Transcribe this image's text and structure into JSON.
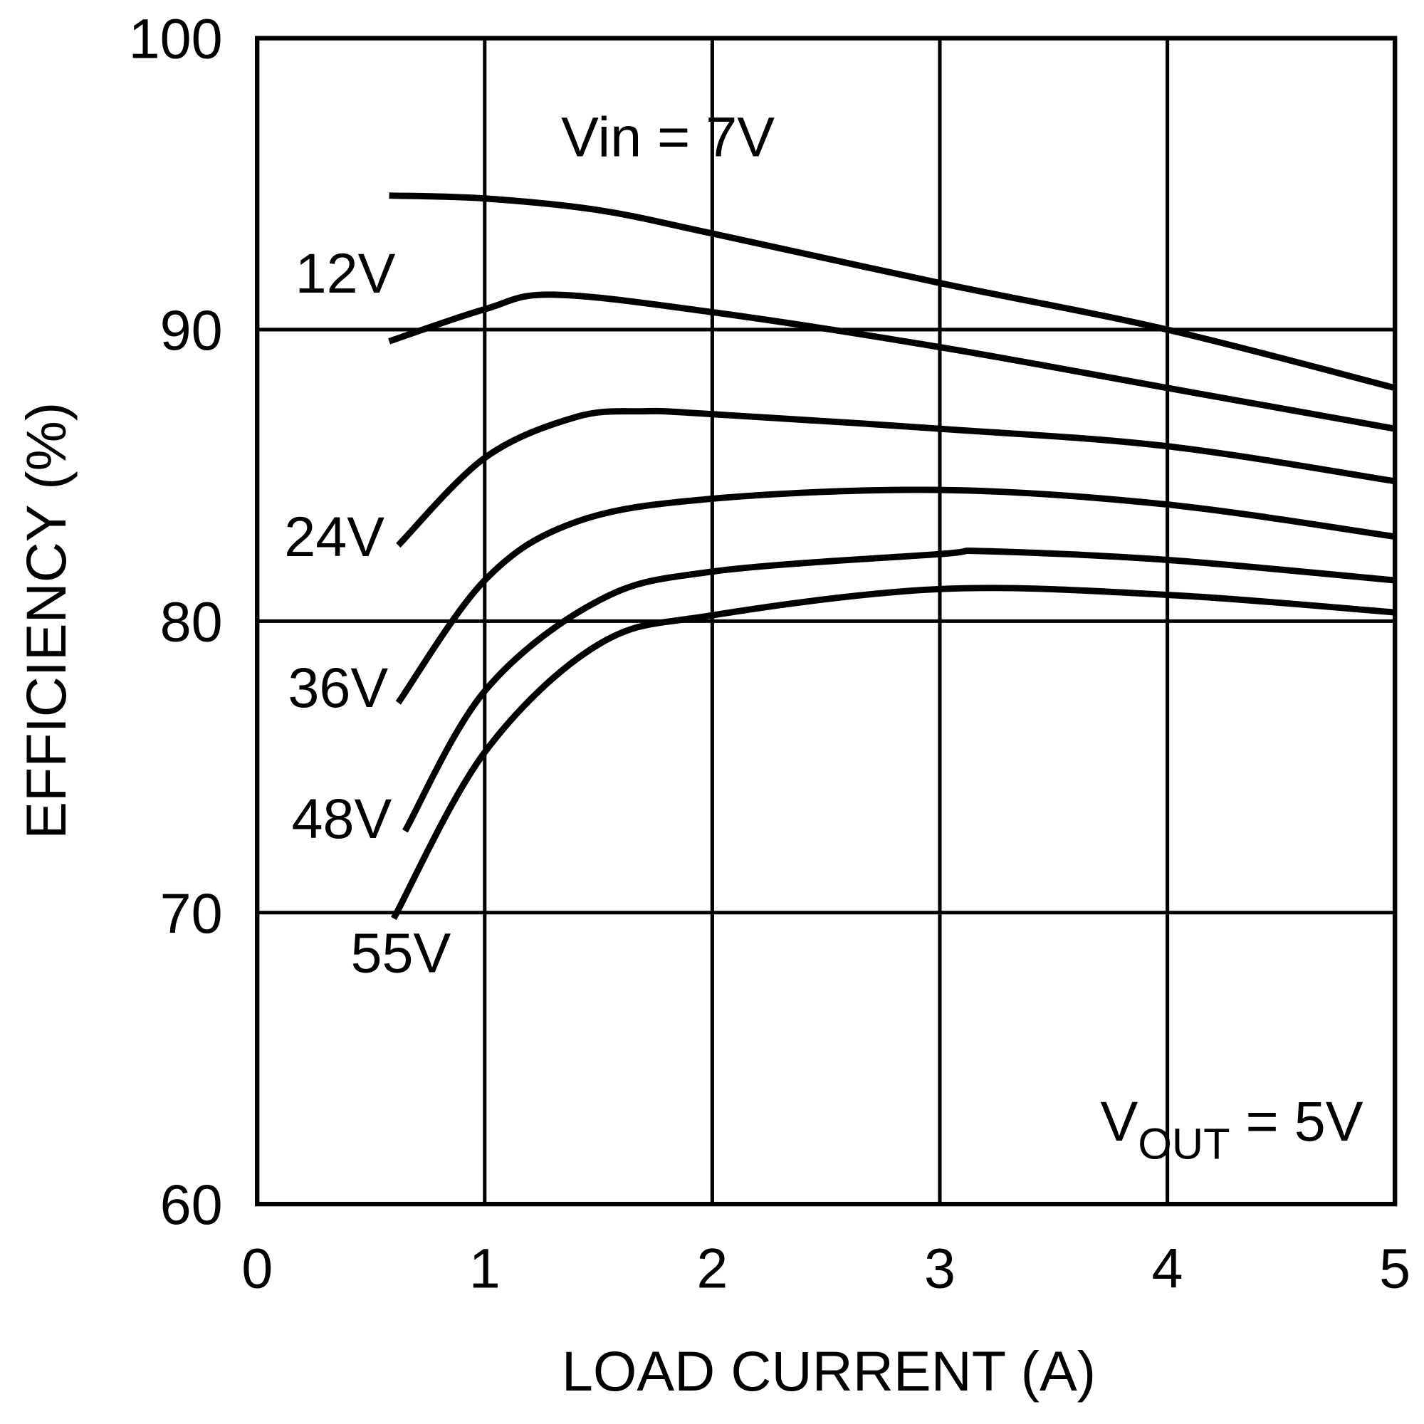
{
  "chart_data": {
    "type": "line",
    "title": "",
    "xlabel": "LOAD CURRENT (A)",
    "ylabel": "EFFICIENCY (%)",
    "xlim": [
      0,
      5
    ],
    "ylim": [
      60,
      100
    ],
    "xticks": [
      "0",
      "1",
      "2",
      "3",
      "4",
      "5"
    ],
    "yticks": [
      "60",
      "70",
      "80",
      "90",
      "100"
    ],
    "grid": true,
    "line_color": "#000000",
    "annotation": {
      "main": "V",
      "sub": "OUT",
      "rest": " = 5V"
    },
    "series": [
      {
        "name": "Vin = 7V",
        "x": [
          0.58,
          1,
          1.5,
          2,
          3,
          4,
          5
        ],
        "y": [
          94.6,
          94.5,
          94.1,
          93.3,
          91.6,
          90.0,
          88.0
        ]
      },
      {
        "name": "12V",
        "x": [
          0.58,
          1,
          1.3,
          2,
          3,
          4,
          5
        ],
        "y": [
          89.6,
          90.7,
          91.2,
          90.6,
          89.4,
          88.0,
          86.6
        ]
      },
      {
        "name": "24V",
        "x": [
          0.62,
          1,
          1.4,
          1.7,
          2,
          3,
          4,
          5
        ],
        "y": [
          82.6,
          85.6,
          87.0,
          87.2,
          87.1,
          86.6,
          86.0,
          84.8
        ]
      },
      {
        "name": "36V",
        "x": [
          0.62,
          1,
          1.4,
          2,
          3,
          4,
          5
        ],
        "y": [
          77.2,
          81.4,
          83.4,
          84.2,
          84.5,
          84.0,
          82.9
        ]
      },
      {
        "name": "48V",
        "x": [
          0.65,
          1,
          1.5,
          2,
          3,
          3.2,
          4,
          5
        ],
        "y": [
          72.8,
          77.6,
          80.7,
          81.7,
          82.3,
          82.4,
          82.1,
          81.4
        ]
      },
      {
        "name": "55V",
        "x": [
          0.6,
          1,
          1.5,
          2,
          3,
          4,
          5
        ],
        "y": [
          69.8,
          75.5,
          79.2,
          80.2,
          81.1,
          80.9,
          80.3
        ]
      }
    ]
  }
}
